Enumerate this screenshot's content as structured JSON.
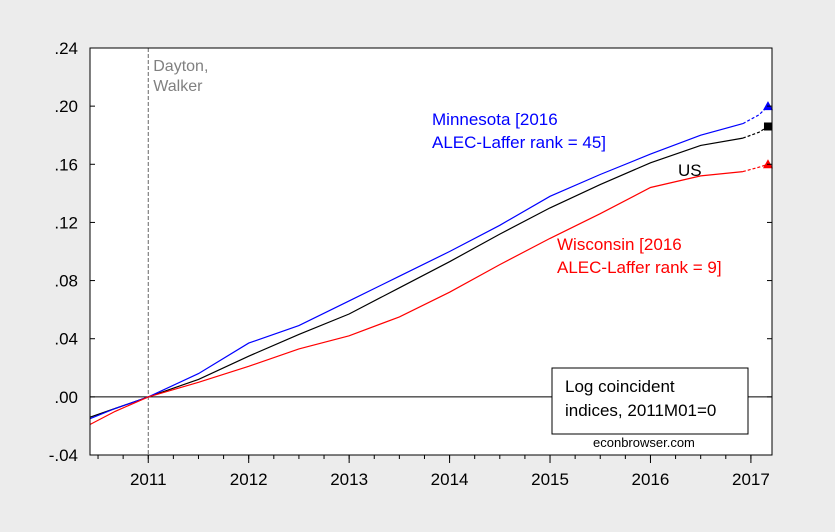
{
  "chart_data": {
    "type": "line",
    "x_unit": "year",
    "xlim": [
      2010.42,
      2017.21
    ],
    "ylim": [
      -0.04,
      0.24
    ],
    "x_ticks": [
      2011,
      2012,
      2013,
      2014,
      2015,
      2016,
      2017
    ],
    "y_ticks": [
      -0.04,
      0.0,
      0.04,
      0.08,
      0.12,
      0.16,
      0.2,
      0.24
    ],
    "x_tick_labels": [
      "2011",
      "2012",
      "2013",
      "2014",
      "2015",
      "2016",
      "2017"
    ],
    "y_tick_labels": [
      "-.04",
      ".00",
      ".04",
      ".08",
      ".12",
      ".16",
      ".20",
      ".24"
    ],
    "grid": false,
    "event_line": {
      "x": 2011.0,
      "label_lines": [
        "Dayton,",
        "Walker"
      ]
    },
    "series": [
      {
        "key": "us",
        "name": "US",
        "color": "#000000",
        "marker": "square",
        "x": [
          2010.42,
          2010.67,
          2011.0,
          2011.5,
          2012.0,
          2012.5,
          2013.0,
          2013.5,
          2014.0,
          2014.5,
          2015.0,
          2015.5,
          2016.0,
          2016.5,
          2016.92
        ],
        "y": [
          -0.014,
          -0.008,
          0.0,
          0.012,
          0.028,
          0.043,
          0.057,
          0.075,
          0.093,
          0.112,
          0.13,
          0.146,
          0.161,
          0.173,
          0.178
        ],
        "forecast_x": [
          2016.92,
          2017.08,
          2017.17
        ],
        "forecast_y": [
          0.178,
          0.182,
          0.186
        ],
        "label_lines": [
          "US"
        ]
      },
      {
        "key": "mn",
        "name": "Minnesota",
        "color": "#0000ff",
        "marker": "triangle",
        "x": [
          2010.42,
          2010.67,
          2011.0,
          2011.5,
          2012.0,
          2012.5,
          2013.0,
          2013.5,
          2014.0,
          2014.5,
          2015.0,
          2015.5,
          2016.0,
          2016.5,
          2016.92
        ],
        "y": [
          -0.015,
          -0.008,
          0.0,
          0.016,
          0.037,
          0.049,
          0.066,
          0.083,
          0.1,
          0.118,
          0.138,
          0.153,
          0.167,
          0.18,
          0.188
        ],
        "forecast_x": [
          2016.92,
          2017.08,
          2017.17
        ],
        "forecast_y": [
          0.188,
          0.194,
          0.2
        ],
        "label_lines": [
          "Minnesota [2016",
          "ALEC-Laffer rank = 45]"
        ]
      },
      {
        "key": "wi",
        "name": "Wisconsin",
        "color": "#ff0000",
        "marker": "triangle",
        "x": [
          2010.42,
          2010.67,
          2011.0,
          2011.5,
          2012.0,
          2012.5,
          2013.0,
          2013.5,
          2014.0,
          2014.5,
          2015.0,
          2015.5,
          2016.0,
          2016.5,
          2016.92
        ],
        "y": [
          -0.019,
          -0.01,
          0.0,
          0.01,
          0.021,
          0.033,
          0.042,
          0.055,
          0.072,
          0.091,
          0.109,
          0.126,
          0.144,
          0.152,
          0.155
        ],
        "forecast_x": [
          2016.92,
          2017.08,
          2017.17
        ],
        "forecast_y": [
          0.155,
          0.158,
          0.16
        ],
        "label_lines": [
          "Wisconsin [2016",
          "ALEC-Laffer rank = 9]"
        ]
      }
    ],
    "legend_box": {
      "lines": [
        "Log coincident",
        "indices, 2011M01=0"
      ],
      "placement": "bottom-right"
    },
    "watermark": "econbrowser.com"
  }
}
